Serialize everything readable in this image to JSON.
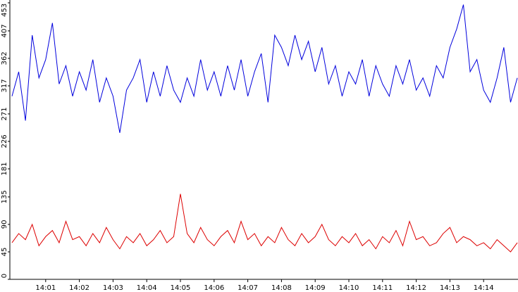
{
  "chart_data": {
    "type": "line",
    "x": [
      0,
      0.2,
      0.4,
      0.6,
      0.8,
      1,
      1.2,
      1.4,
      1.6,
      1.8,
      2,
      2.2,
      2.4,
      2.6,
      2.8,
      3,
      3.2,
      3.4,
      3.6,
      3.8,
      4,
      4.2,
      4.4,
      4.6,
      4.8,
      5,
      5.2,
      5.4,
      5.6,
      5.8,
      6,
      6.2,
      6.4,
      6.6,
      6.8,
      7,
      7.2,
      7.4,
      7.6,
      7.8,
      8,
      8.2,
      8.4,
      8.6,
      8.8,
      9,
      9.2,
      9.4,
      9.6,
      9.8,
      10,
      10.2,
      10.4,
      10.6,
      10.8,
      11,
      11.2,
      11.4,
      11.6,
      11.8,
      12,
      12.2,
      12.4,
      12.6,
      12.8,
      13,
      13.2,
      13.4,
      13.6,
      13.8,
      14,
      14.2,
      14.4,
      14.6,
      14.8,
      15
    ],
    "series": [
      {
        "color": "#0000dd",
        "values": [
          300,
          340,
          260,
          400,
          330,
          360,
          420,
          320,
          350,
          300,
          340,
          310,
          360,
          290,
          330,
          300,
          240,
          310,
          330,
          360,
          290,
          340,
          300,
          350,
          310,
          290,
          330,
          300,
          360,
          310,
          340,
          300,
          350,
          310,
          360,
          300,
          340,
          370,
          290,
          400,
          380,
          350,
          400,
          360,
          390,
          340,
          380,
          320,
          350,
          300,
          340,
          320,
          360,
          300,
          350,
          320,
          300,
          350,
          320,
          360,
          310,
          330,
          300,
          350,
          330,
          380,
          410,
          450,
          340,
          360,
          310,
          290,
          330,
          380,
          290,
          330
        ]
      },
      {
        "color": "#dd0000",
        "values": [
          60,
          75,
          65,
          90,
          55,
          70,
          80,
          60,
          95,
          65,
          70,
          55,
          75,
          60,
          85,
          65,
          50,
          70,
          60,
          75,
          55,
          65,
          80,
          60,
          70,
          140,
          75,
          60,
          85,
          65,
          55,
          70,
          80,
          60,
          95,
          65,
          75,
          55,
          70,
          60,
          85,
          65,
          55,
          75,
          60,
          70,
          90,
          65,
          55,
          70,
          60,
          75,
          55,
          65,
          50,
          70,
          60,
          80,
          55,
          95,
          65,
          70,
          55,
          60,
          75,
          85,
          60,
          70,
          65,
          55,
          60,
          50,
          65,
          55,
          45,
          60
        ]
      }
    ],
    "xlim": [
      0,
      15
    ],
    "xticks": [
      {
        "value": 1,
        "label": "14:01"
      },
      {
        "value": 2,
        "label": "14:02"
      },
      {
        "value": 3,
        "label": "14:03"
      },
      {
        "value": 4,
        "label": "14:04"
      },
      {
        "value": 5,
        "label": "14:05"
      },
      {
        "value": 6,
        "label": "14:06"
      },
      {
        "value": 7,
        "label": "14:07"
      },
      {
        "value": 8,
        "label": "14:08"
      },
      {
        "value": 9,
        "label": "14:09"
      },
      {
        "value": 10,
        "label": "14:10"
      },
      {
        "value": 11,
        "label": "14:11"
      },
      {
        "value": 12,
        "label": "14:12"
      },
      {
        "value": 13,
        "label": "14:13"
      },
      {
        "value": 14,
        "label": "14:14"
      }
    ],
    "ylim": [
      0,
      453
    ],
    "yticks": [
      0,
      45,
      90,
      135,
      181,
      226,
      271,
      317,
      362,
      407,
      453
    ]
  }
}
